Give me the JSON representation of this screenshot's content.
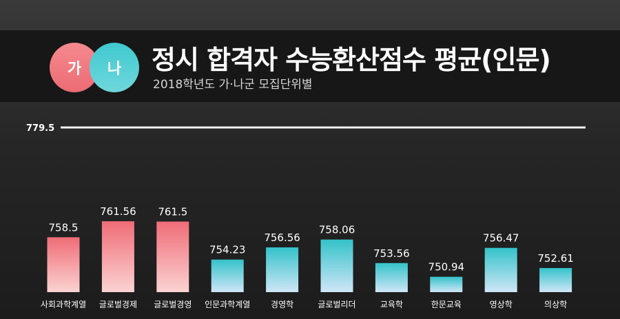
{
  "header": {
    "badge_ga": "가",
    "badge_na": "나",
    "title": "정시 합격자 수능환산점수 평균(인문)",
    "subtitle": "2018학년도 가·나군 모집단위별"
  },
  "colors": {
    "ga_group": "#ec6b73",
    "na_group": "#3fc9cf",
    "background": "#232323"
  },
  "chart_data": {
    "type": "bar",
    "title": "정시 합격자 수능환산점수 평균(인문)",
    "subtitle": "2018학년도 가·나군 모집단위별",
    "categories": [
      "사회과학계열",
      "글로벌경제",
      "글로벌경영",
      "인문과학계열",
      "경영학",
      "글로벌리더",
      "교육학",
      "한문교육",
      "영상학",
      "의상학"
    ],
    "values": [
      758.5,
      761.56,
      761.5,
      754.23,
      756.56,
      758.06,
      753.56,
      750.94,
      756.47,
      752.61
    ],
    "value_labels": [
      "758.5",
      "761.56",
      "761.5",
      "754.23",
      "756.56",
      "758.06",
      "753.56",
      "750.94",
      "756.47",
      "752.61"
    ],
    "groups": [
      "가",
      "가",
      "가",
      "나",
      "나",
      "나",
      "나",
      "나",
      "나",
      "나"
    ],
    "reference_line": {
      "value": 779.5,
      "label": "779.5"
    },
    "ylim": [
      748,
      779.5
    ],
    "xlabel": "",
    "ylabel": "",
    "grid": false
  }
}
